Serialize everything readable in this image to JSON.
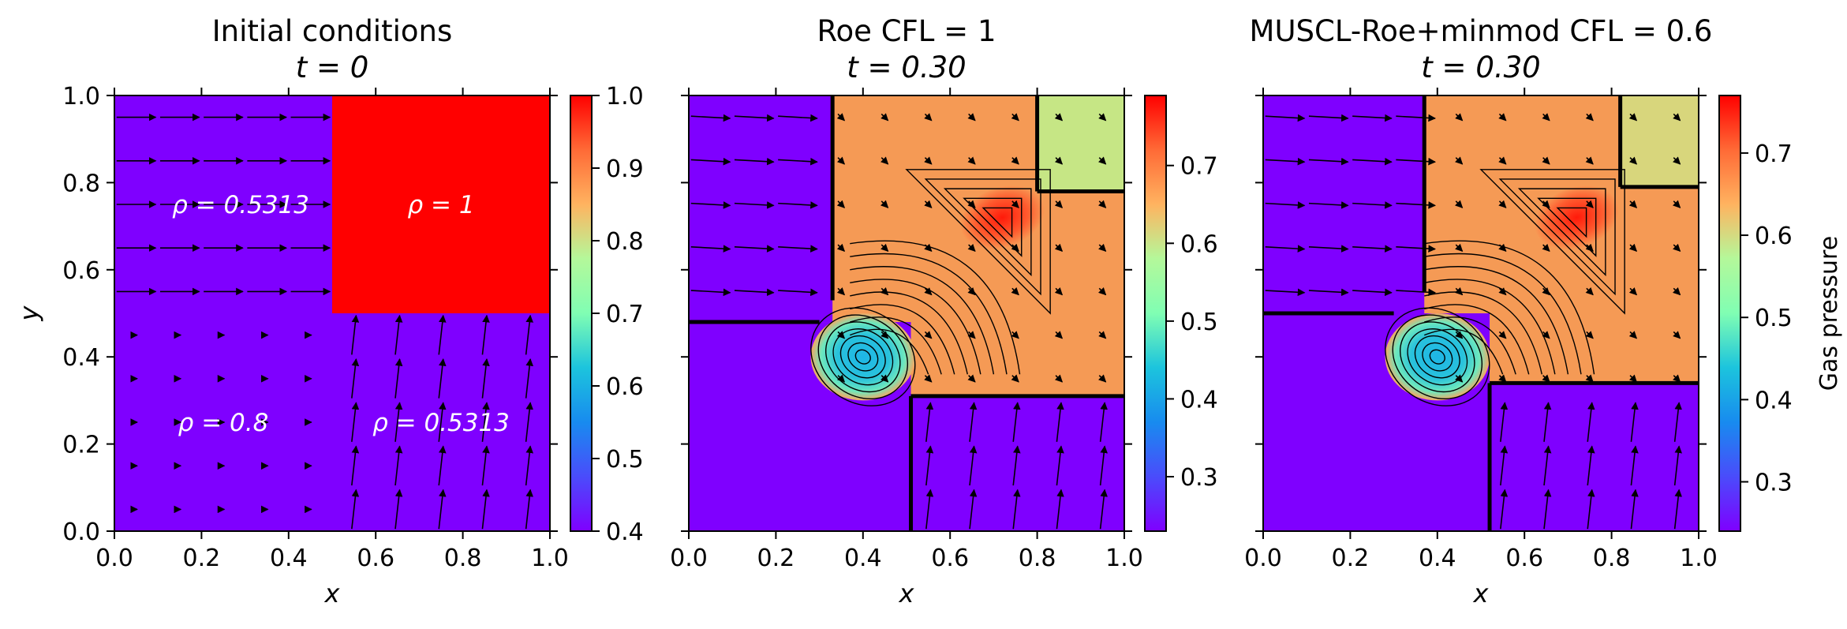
{
  "chart_data": [
    {
      "type": "heatmap",
      "title_line1": "Initial conditions",
      "title_line2": "t = 0",
      "xlabel": "x",
      "ylabel": "y",
      "xlim": [
        0,
        1
      ],
      "ylim": [
        0,
        1
      ],
      "xticks": [
        "0.0",
        "0.2",
        "0.4",
        "0.6",
        "0.8",
        "1.0"
      ],
      "yticks": [
        "0.0",
        "0.2",
        "0.4",
        "0.6",
        "0.8",
        "1.0"
      ],
      "colormap": "rainbow",
      "colorbar": {
        "range": [
          0.4,
          1.0
        ],
        "ticks": [
          "0.4",
          "0.5",
          "0.6",
          "0.7",
          "0.8",
          "0.9",
          "1.0"
        ]
      },
      "regions": [
        {
          "label": "ρ = 0.5313",
          "x": [
            0,
            0.5
          ],
          "y": [
            0.5,
            1
          ],
          "value": 0.4,
          "color": "#7f00ff"
        },
        {
          "label": "ρ = 1",
          "x": [
            0.5,
            1
          ],
          "y": [
            0.5,
            1
          ],
          "value": 1.0,
          "color": "#ff0000"
        },
        {
          "label": "ρ = 0.8",
          "x": [
            0,
            0.5
          ],
          "y": [
            0,
            0.5
          ],
          "value": 0.4,
          "color": "#7f00ff"
        },
        {
          "label": "ρ = 0.5313",
          "x": [
            0.5,
            1
          ],
          "y": [
            0,
            0.5
          ],
          "value": 0.4,
          "color": "#7f00ff"
        }
      ],
      "quiver": "velocity field"
    },
    {
      "type": "heatmap",
      "title_line1": "Roe CFL = 1",
      "title_line2": "t = 0.30",
      "xlabel": "x",
      "xlim": [
        0,
        1
      ],
      "ylim": [
        0,
        1
      ],
      "xticks": [
        "0.0",
        "0.2",
        "0.4",
        "0.6",
        "0.8",
        "1.0"
      ],
      "colormap": "rainbow",
      "colorbar": {
        "range": [
          0.23,
          0.79
        ],
        "ticks": [
          "0.3",
          "0.4",
          "0.5",
          "0.6",
          "0.7"
        ]
      },
      "features": {
        "shock_x": 0.33,
        "shock_y": 0.48,
        "interface_x": 0.51,
        "interface_y": 0.31,
        "top_right_x": 0.8,
        "top_right_y": 0.78
      }
    },
    {
      "type": "heatmap",
      "title_line1": "MUSCL-Roe+minmod CFL = 0.6",
      "title_line2": "t = 0.30",
      "xlabel": "x",
      "xlim": [
        0,
        1
      ],
      "ylim": [
        0,
        1
      ],
      "xticks": [
        "0.0",
        "0.2",
        "0.4",
        "0.6",
        "0.8",
        "1.0"
      ],
      "colormap": "rainbow",
      "colorbar": {
        "range": [
          0.24,
          0.77
        ],
        "ticks": [
          "0.3",
          "0.4",
          "0.5",
          "0.6",
          "0.7"
        ],
        "label": "Gas pressure"
      },
      "features": {
        "shock_x": 0.37,
        "shock_y": 0.5,
        "interface_x": 0.52,
        "interface_y": 0.34,
        "top_right_x": 0.82,
        "top_right_y": 0.79
      }
    }
  ]
}
